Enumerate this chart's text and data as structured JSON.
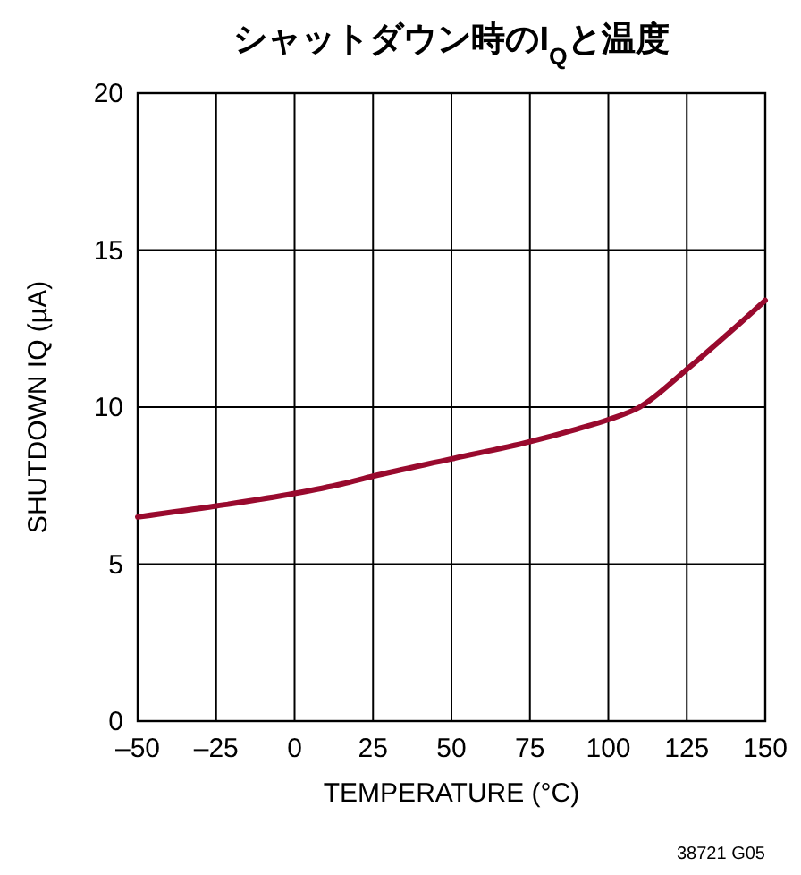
{
  "chart_data": {
    "type": "line",
    "title": "シャットダウン時のI$_{Q}$と温度",
    "xlabel": "TEMPERATURE (°C)",
    "ylabel": "SHUTDOWN IQ (µA)",
    "x": [
      -50,
      -25,
      0,
      15,
      25,
      50,
      75,
      90,
      100,
      110,
      125,
      140,
      150
    ],
    "series": [
      {
        "color": "#990a2e",
        "values": [
          6.5,
          6.85,
          7.25,
          7.55,
          7.8,
          8.35,
          8.9,
          9.3,
          9.6,
          10.0,
          11.2,
          12.5,
          13.4
        ]
      }
    ],
    "xlim": [
      -50,
      150
    ],
    "xticks": [
      {
        "value": -50,
        "label": "–50"
      },
      {
        "value": -25,
        "label": "–25"
      },
      0,
      25,
      50,
      75,
      100,
      125,
      150
    ],
    "ylim": [
      0,
      20
    ],
    "yticks": [
      0,
      5,
      10,
      15,
      20
    ],
    "grid": true,
    "line_style": "solid",
    "marker": "none",
    "annotations": [
      "38721 G05"
    ]
  }
}
